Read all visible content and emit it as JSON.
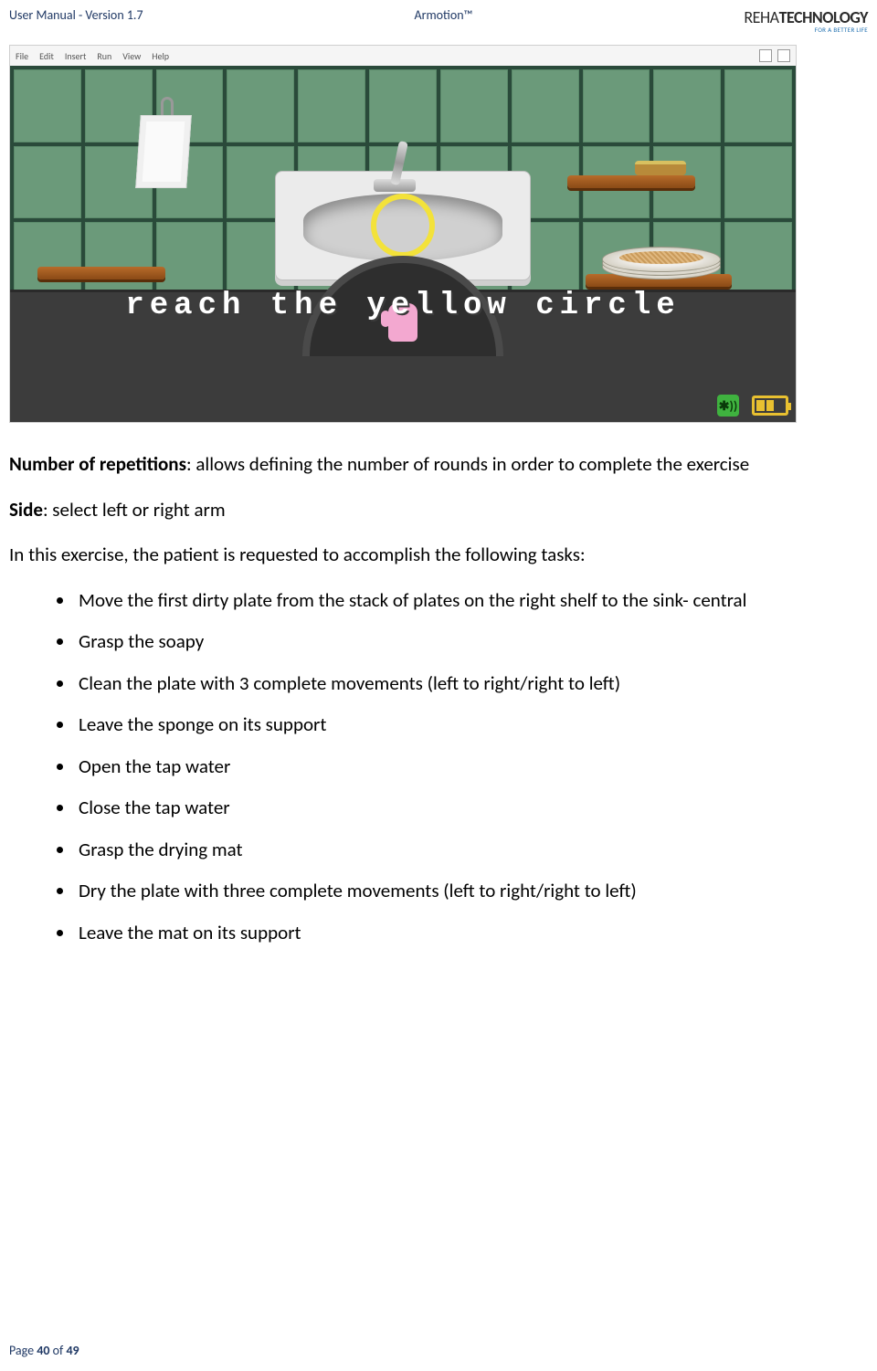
{
  "header": {
    "left": "User Manual - Version 1.7",
    "center": "Armotion™",
    "logo_top": "REHA",
    "logo_bottom": "TECHNOLOGY",
    "logo_tag": "FOR A BETTER LIFE"
  },
  "app": {
    "menus": [
      "File",
      "Edit",
      "Insert",
      "Run",
      "View",
      "Help"
    ],
    "banner": "reach the yellow circle",
    "bt_label": "✱))",
    "colors": {
      "tile": "#6b9a7a",
      "grout": "#2a4a3a",
      "sink": "#ebebeb",
      "counter": "#3c3c3c",
      "yellow_ring": "#f3e23a",
      "shelf": "#b76b2a",
      "glove": "#f3a8d0",
      "battery": "#e8c030",
      "bt": "#3fb23f"
    }
  },
  "body": {
    "p1_label": "Number of repetitions",
    "p1_rest": ": allows defining the number of rounds in order to complete the exercise",
    "p2_label": "Side",
    "p2_rest": ": select left or right arm",
    "p3": "In this exercise, the patient is requested to accomplish the following tasks:",
    "bullets": [
      "Move the first dirty plate from the stack of plates on the right shelf to the sink- central",
      "Grasp the soapy",
      "Clean the plate with 3 complete movements (left to right/right to left)",
      "Leave the sponge on its support",
      "Open the tap water",
      "Close the tap water",
      "Grasp the drying mat",
      "Dry the plate with three complete movements (left to right/right to left)",
      "Leave the mat on its support"
    ]
  },
  "footer": {
    "prefix": "Page ",
    "current": "40",
    "mid": " of ",
    "total": "49"
  }
}
